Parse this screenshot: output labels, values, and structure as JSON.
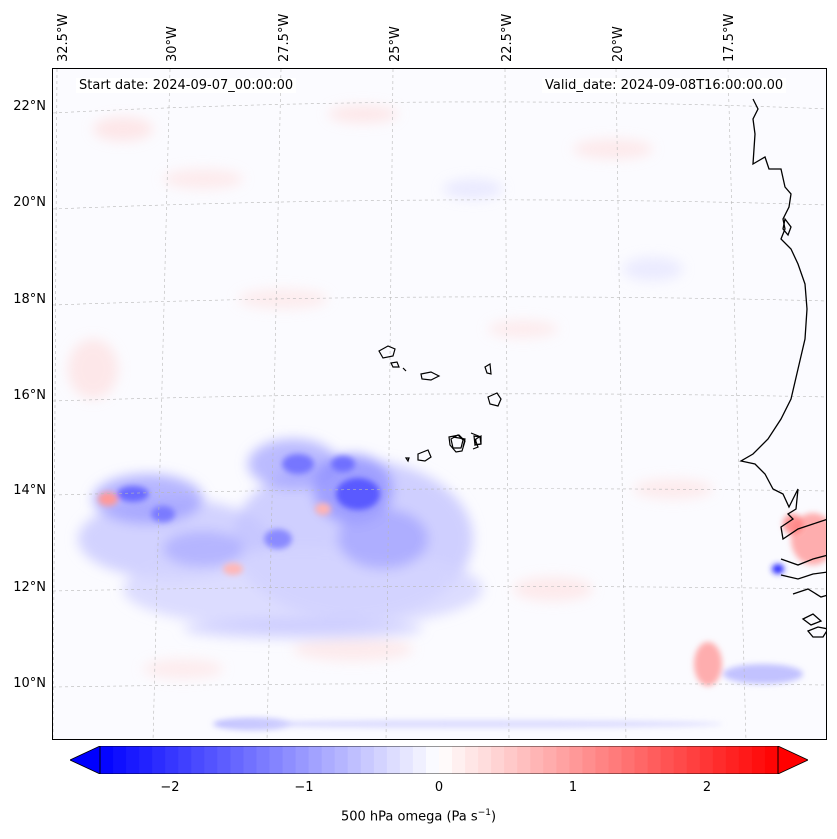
{
  "map": {
    "start_date": "Start date: 2024-09-07_00:00:00",
    "valid_date": "Valid_date: 2024-09-08T16:00:00.00",
    "variable": "500 hPa omega",
    "units": "Pa s",
    "units_exponent": "−1",
    "longitude_labels": [
      "32.5°W",
      "30°W",
      "27.5°W",
      "25°W",
      "22.5°W",
      "20°W",
      "17.5°W"
    ],
    "latitude_labels": [
      "22°N",
      "20°N",
      "18°N",
      "16°N",
      "14°N",
      "12°N",
      "10°N"
    ],
    "features": [
      "Cape Verde islands",
      "West African coastline",
      "convective band near 13-15°N"
    ]
  },
  "colorbar": {
    "colormap": "bwr",
    "min": -2.6,
    "max": 2.6,
    "ticks": [
      -2,
      -1,
      0,
      1,
      2
    ],
    "tick_labels": [
      "−2",
      "−1",
      "0",
      "1",
      "2"
    ],
    "extend": "both",
    "colors": {
      "negative": "#0000ff",
      "zero": "#ffffff",
      "positive": "#ff0000"
    }
  }
}
